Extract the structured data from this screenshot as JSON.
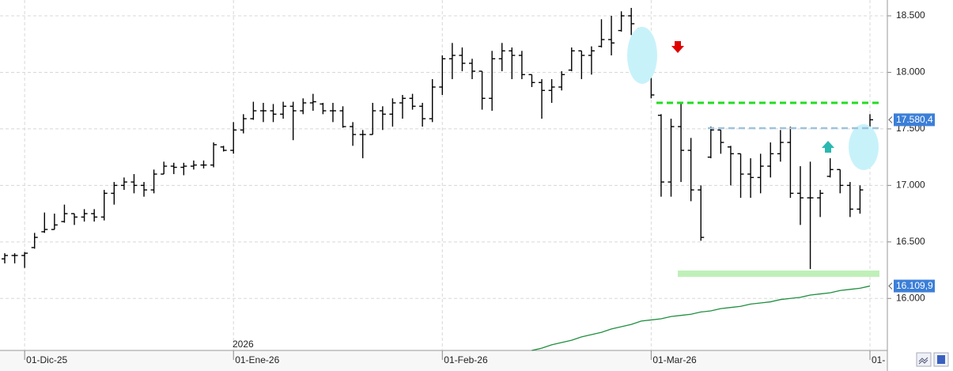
{
  "chart_data": {
    "type": "ohlc",
    "categories": [
      null,
      null,
      "01-Dic-25",
      null,
      null,
      null,
      null,
      null,
      null,
      null,
      null,
      null,
      null,
      null,
      null,
      null,
      null,
      null,
      null,
      null,
      null,
      null,
      null,
      "01-Ene-26",
      null,
      null,
      null,
      null,
      null,
      null,
      null,
      null,
      null,
      null,
      null,
      null,
      null,
      null,
      null,
      null,
      null,
      null,
      null,
      null,
      "01-Feb-26",
      null,
      null,
      null,
      null,
      null,
      null,
      null,
      null,
      null,
      null,
      null,
      null,
      null,
      null,
      null,
      null,
      null,
      null,
      null,
      null,
      "01-Mar-26",
      null,
      null,
      null,
      null,
      null,
      null,
      null,
      null,
      null,
      null,
      null,
      null,
      null,
      null,
      null,
      null,
      null,
      null,
      null,
      null,
      null,
      "01-"
    ],
    "open": [
      16350,
      16380,
      16380,
      16450,
      16590,
      16610,
      16680,
      16750,
      16720,
      16750,
      16720,
      16930,
      17000,
      17030,
      17000,
      16960,
      17100,
      17170,
      17160,
      17170,
      17180,
      17180,
      17340,
      17310,
      17490,
      17590,
      17660,
      17660,
      17630,
      17700,
      17660,
      17730,
      17720,
      17660,
      17660,
      17520,
      17450,
      17450,
      17660,
      17630,
      17730,
      17770,
      17700,
      17590,
      17870,
      18120,
      18150,
      18080,
      18010,
      17770,
      18120,
      18190,
      18150,
      17980,
      17910,
      17840,
      17870,
      18020,
      18190,
      18150,
      18230,
      18290,
      18370,
      18500,
      18390,
      17980,
      17620,
      17030,
      17520,
      17310,
      16960,
      17250,
      17490,
      17340,
      17280,
      17100,
      17070,
      17170,
      17280,
      17380,
      16930,
      16890,
      16890,
      17080,
      17140,
      17000,
      16790,
      17500
    ],
    "high": [
      16400,
      16400,
      16410,
      16580,
      16760,
      16750,
      16830,
      16750,
      16790,
      16790,
      16960,
      17030,
      17070,
      17100,
      17030,
      17140,
      17210,
      17200,
      17200,
      17220,
      17220,
      17380,
      17350,
      17560,
      17630,
      17740,
      17730,
      17720,
      17740,
      17740,
      17770,
      17810,
      17730,
      17730,
      17700,
      17560,
      17490,
      17730,
      17700,
      17770,
      17800,
      17810,
      17730,
      17940,
      18150,
      18260,
      18220,
      18120,
      18010,
      18190,
      18260,
      18220,
      18190,
      17980,
      17940,
      17940,
      18010,
      18220,
      18190,
      18230,
      18470,
      18500,
      18540,
      18570,
      18400,
      17980,
      17630,
      17590,
      17730,
      17420,
      17000,
      17520,
      17490,
      17350,
      17280,
      17240,
      17280,
      17380,
      17490,
      17520,
      17170,
      17210,
      16960,
      17240,
      17140,
      17030,
      17000,
      17630
    ],
    "low": [
      16310,
      16310,
      16270,
      16440,
      16580,
      16610,
      16670,
      16650,
      16680,
      16680,
      16690,
      16830,
      16960,
      16930,
      16900,
      16930,
      17100,
      17100,
      17090,
      17140,
      17150,
      17160,
      17300,
      17280,
      17460,
      17580,
      17560,
      17560,
      17590,
      17400,
      17630,
      17660,
      17630,
      17560,
      17510,
      17350,
      17240,
      17450,
      17490,
      17520,
      17590,
      17670,
      17520,
      17560,
      17800,
      17940,
      18010,
      17940,
      17670,
      17660,
      18010,
      17940,
      17940,
      17870,
      17590,
      17730,
      17840,
      18010,
      17940,
      17980,
      18220,
      18150,
      18360,
      18330,
      17940,
      17770,
      16900,
      16900,
      17030,
      16860,
      16510,
      17240,
      17280,
      17000,
      16890,
      16890,
      16930,
      17070,
      17210,
      16890,
      16650,
      16260,
      16720,
      17070,
      16930,
      16720,
      16750,
      17490
    ],
    "close": [
      16380,
      16380,
      16400,
      16540,
      16610,
      16650,
      16750,
      16720,
      16750,
      16720,
      16930,
      17000,
      17030,
      17000,
      16960,
      17100,
      17170,
      17160,
      17170,
      17180,
      17180,
      17360,
      17310,
      17490,
      17590,
      17660,
      17660,
      17630,
      17700,
      17660,
      17730,
      17740,
      17660,
      17660,
      17520,
      17450,
      17450,
      17660,
      17630,
      17730,
      17770,
      17700,
      17590,
      17870,
      18120,
      18150,
      18080,
      18010,
      17770,
      18120,
      18190,
      18150,
      17980,
      17910,
      17840,
      17870,
      17980,
      18190,
      18150,
      18190,
      18290,
      18260,
      18500,
      18430,
      17980,
      17800,
      17030,
      17520,
      17310,
      16960,
      16540,
      17490,
      17380,
      17280,
      17100,
      17070,
      17170,
      17280,
      17380,
      16930,
      16890,
      16890,
      16930,
      17140,
      17000,
      16790,
      16960,
      17580.4
    ],
    "color": "#000000",
    "ma": {
      "color": "#1f8f3f",
      "values": [
        null,
        null,
        null,
        null,
        null,
        null,
        null,
        null,
        null,
        null,
        null,
        null,
        null,
        null,
        null,
        null,
        null,
        null,
        null,
        null,
        null,
        null,
        null,
        null,
        null,
        null,
        null,
        null,
        null,
        null,
        null,
        null,
        null,
        null,
        null,
        null,
        null,
        null,
        null,
        null,
        null,
        null,
        null,
        null,
        null,
        null,
        null,
        null,
        null,
        null,
        null,
        null,
        null,
        15540,
        15560,
        15590,
        15610,
        15630,
        15660,
        15680,
        15700,
        15730,
        15750,
        15770,
        15800,
        15810,
        15820,
        15840,
        15850,
        15860,
        15880,
        15890,
        15910,
        15920,
        15930,
        15950,
        15960,
        15970,
        15990,
        16000,
        16010,
        16030,
        16040,
        16050,
        16070,
        16080,
        16090,
        16109.9
      ]
    },
    "price_tags": [
      {
        "value": 17580.4,
        "label": "17.580,4"
      },
      {
        "value": 16109.9,
        "label": "16.109,9"
      }
    ],
    "year_label": "2026",
    "ylim": [
      15540,
      18640
    ],
    "yticks": [
      {
        "value": 16000,
        "label": "16.000"
      },
      {
        "value": 16500,
        "label": "16.500"
      },
      {
        "value": 17000,
        "label": "17.000"
      },
      {
        "value": 17500,
        "label": "17.500"
      },
      {
        "value": 18000,
        "label": "18.000"
      },
      {
        "value": 18500,
        "label": "18.500"
      }
    ],
    "grid": true
  }
}
